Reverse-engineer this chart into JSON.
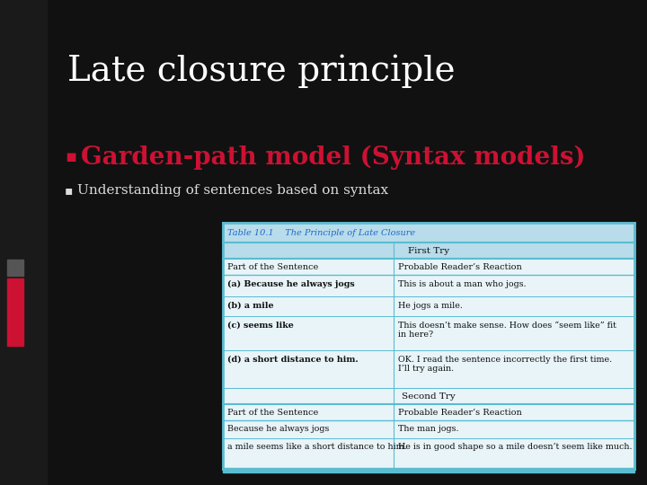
{
  "title": "Late closure principle",
  "bullet1": "Garden-path model (Syntax models)",
  "bullet2": "Understanding of sentences based on syntax",
  "table_title": "Table 10.1    The Principle of Late Closure",
  "table_header_center": "First Try",
  "table_col1_header": "Part of the Sentence",
  "table_col2_header": "Probable Reader’s Reaction",
  "table_rows_first": [
    [
      "(a) Because he always jogs",
      "This is about a man who jogs."
    ],
    [
      "(b) a mile",
      "He jogs a mile."
    ],
    [
      "(c) seems like",
      "This doesn’t make sense. How does “seem like” fit\nin here?"
    ],
    [
      "(d) a short distance to him.",
      "OK. I read the sentence incorrectly the first time.\nI’ll try again."
    ]
  ],
  "table_second_try_label": "Second Try",
  "table_col1_header2": "Part of the Sentence",
  "table_col2_header2": "Probable Reader’s Reaction",
  "table_rows_second": [
    [
      "Because he always jogs",
      "The man jogs."
    ],
    [
      "a mile seems like a short distance to him.",
      "He is in good shape so a mile doesn’t seem like much."
    ]
  ],
  "bg_color": "#111111",
  "title_color": "#ffffff",
  "bullet1_color": "#cc1133",
  "bullet2_color": "#dddddd",
  "table_bg": "#e8f4f8",
  "table_header_bg": "#b8dcea",
  "table_title_color": "#2266cc",
  "table_border_color": "#5bbcd0",
  "table_text_color": "#111111",
  "table_bold_parts": [
    "(a) Because he always jogs",
    "(b) a mile",
    "(c) seems like",
    "(d) a short distance to him."
  ]
}
